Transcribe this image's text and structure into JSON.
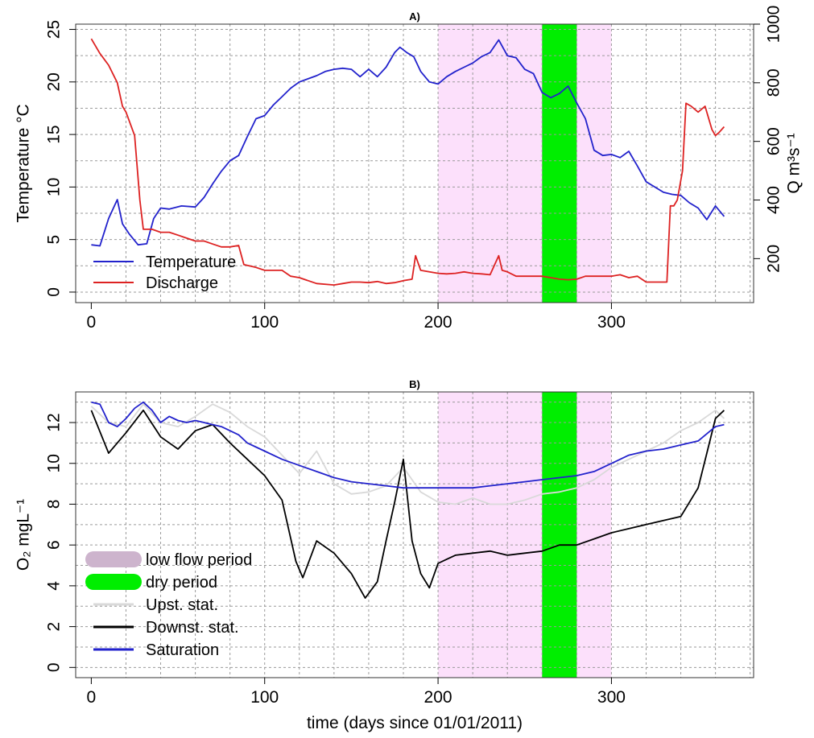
{
  "xlabel": "time (days since 01/01/2011)",
  "chart_data": [
    {
      "type": "line",
      "title": "A)",
      "ylabel": "Temperature °C",
      "ylabel_right": "Q m³s⁻¹",
      "xlim": [
        -9,
        382
      ],
      "ylim": [
        -1,
        25.5
      ],
      "ylim_right": [
        50,
        1000
      ],
      "x_ticks": [
        0,
        100,
        200,
        300
      ],
      "y_ticks": [
        0,
        5,
        10,
        15,
        20,
        25
      ],
      "y_ticks_right": [
        200,
        400,
        600,
        800,
        1000
      ],
      "x_tick_labels": [
        "0",
        "100",
        "200",
        "300"
      ],
      "y_tick_labels": [
        "0",
        "5",
        "10",
        "15",
        "20",
        "25"
      ],
      "y_tick_labels_right": [
        "200",
        "400",
        "600",
        "800",
        "1000"
      ],
      "grid": true,
      "legend": "bottom-left",
      "shaded_periods": [
        {
          "label": "low flow period",
          "start": 200,
          "end": 300,
          "color": "#fce0fb"
        },
        {
          "label": "dry period",
          "start": 260,
          "end": 280,
          "color": "#00ee00"
        }
      ],
      "series": [
        {
          "name": "Temperature",
          "axis": "left",
          "color": "#2222cc",
          "x": [
            0,
            5,
            10,
            15,
            18,
            22,
            27,
            32,
            36,
            40,
            45,
            52,
            60,
            65,
            70,
            75,
            80,
            85,
            90,
            95,
            100,
            105,
            110,
            115,
            120,
            125,
            130,
            135,
            140,
            145,
            150,
            155,
            160,
            165,
            170,
            175,
            178,
            182,
            186,
            190,
            195,
            200,
            205,
            210,
            215,
            220,
            225,
            230,
            235,
            240,
            245,
            250,
            255,
            260,
            265,
            270,
            275,
            280,
            285,
            290,
            295,
            300,
            305,
            310,
            315,
            320,
            325,
            330,
            335,
            340,
            345,
            350,
            355,
            360,
            365
          ],
          "y": [
            4.5,
            4.4,
            7.0,
            8.8,
            6.5,
            5.5,
            4.5,
            4.6,
            7.0,
            8.0,
            7.9,
            8.2,
            8.1,
            9.0,
            10.3,
            11.5,
            12.5,
            13.0,
            14.8,
            16.5,
            16.8,
            17.8,
            18.6,
            19.4,
            20.0,
            20.3,
            20.6,
            21.0,
            21.2,
            21.3,
            21.2,
            20.5,
            21.2,
            20.5,
            21.4,
            22.8,
            23.3,
            22.8,
            22.4,
            21.0,
            20.0,
            19.8,
            20.5,
            21.0,
            21.4,
            21.8,
            22.4,
            22.8,
            24.0,
            22.5,
            22.3,
            21.2,
            20.8,
            19.0,
            18.5,
            18.9,
            19.6,
            18.0,
            16.5,
            13.5,
            13.0,
            13.1,
            12.8,
            13.4,
            12.0,
            10.5,
            10.0,
            9.5,
            9.3,
            9.2,
            8.5,
            8.0,
            6.9,
            8.2,
            7.2
          ]
        },
        {
          "name": "Discharge",
          "axis": "right",
          "color": "#dd2222",
          "x": [
            0,
            5,
            10,
            15,
            18,
            20,
            25,
            28,
            30,
            35,
            40,
            45,
            50,
            55,
            60,
            65,
            70,
            75,
            80,
            85,
            88,
            95,
            100,
            110,
            115,
            120,
            125,
            130,
            140,
            145,
            150,
            155,
            160,
            165,
            170,
            175,
            180,
            185,
            187,
            190,
            195,
            200,
            205,
            210,
            215,
            220,
            225,
            230,
            235,
            237,
            240,
            245,
            250,
            255,
            260,
            265,
            270,
            275,
            280,
            285,
            290,
            295,
            300,
            305,
            310,
            315,
            320,
            325,
            332,
            334,
            336,
            338,
            341,
            343,
            346,
            350,
            354,
            358,
            360,
            362,
            365
          ],
          "y": [
            950,
            900,
            860,
            800,
            720,
            700,
            620,
            400,
            300,
            300,
            290,
            290,
            280,
            270,
            260,
            260,
            250,
            240,
            240,
            245,
            180,
            170,
            160,
            160,
            140,
            135,
            125,
            115,
            110,
            115,
            120,
            120,
            118,
            122,
            115,
            118,
            125,
            130,
            210,
            160,
            155,
            150,
            148,
            150,
            155,
            150,
            148,
            145,
            210,
            160,
            155,
            140,
            140,
            140,
            140,
            135,
            130,
            128,
            130,
            140,
            140,
            140,
            140,
            145,
            135,
            140,
            120,
            120,
            120,
            380,
            380,
            400,
            500,
            730,
            720,
            700,
            720,
            640,
            620,
            630,
            650
          ]
        }
      ]
    },
    {
      "type": "line",
      "title": "B)",
      "ylabel": "O₂ mgL⁻¹",
      "xlim": [
        -9,
        382
      ],
      "ylim": [
        -0.5,
        13.5
      ],
      "x_ticks": [
        0,
        100,
        200,
        300
      ],
      "y_ticks": [
        0,
        2,
        4,
        6,
        8,
        10,
        12
      ],
      "x_tick_labels": [
        "0",
        "100",
        "200",
        "300"
      ],
      "y_tick_labels": [
        "0",
        "2",
        "4",
        "6",
        "8",
        "10",
        "12"
      ],
      "grid": true,
      "legend": "bottom-left",
      "legend_entries": [
        {
          "label": "low flow period",
          "color": "#cdb4cd",
          "style": "thick"
        },
        {
          "label": "dry period",
          "color": "#00ee00",
          "style": "thick"
        },
        {
          "label": "Upst. stat.",
          "color": "#d9d9d9",
          "style": "line"
        },
        {
          "label": "Downst. stat.",
          "color": "#000000",
          "style": "line"
        },
        {
          "label": "Saturation",
          "color": "#2222cc",
          "style": "line"
        }
      ],
      "shaded_periods": [
        {
          "label": "low flow period",
          "start": 200,
          "end": 300,
          "color": "#fce0fb"
        },
        {
          "label": "dry period",
          "start": 260,
          "end": 280,
          "color": "#00ee00"
        }
      ],
      "series": [
        {
          "name": "Upst. stat.",
          "color": "#d9d9d9",
          "x": [
            0,
            10,
            20,
            30,
            40,
            50,
            60,
            70,
            80,
            90,
            100,
            110,
            120,
            130,
            140,
            150,
            160,
            170,
            180,
            190,
            200,
            210,
            220,
            230,
            240,
            250,
            260,
            270,
            280,
            290,
            300,
            310,
            320,
            330,
            340,
            350,
            360,
            365
          ],
          "y": [
            12.8,
            12.0,
            11.8,
            12.9,
            12.0,
            11.8,
            12.3,
            12.9,
            12.5,
            11.8,
            11.3,
            10.4,
            9.5,
            10.6,
            9.0,
            8.5,
            8.6,
            8.9,
            9.8,
            8.6,
            8.1,
            8.0,
            8.3,
            8.0,
            8.0,
            8.2,
            8.5,
            8.6,
            8.8,
            9.2,
            9.8,
            10.2,
            10.6,
            11.0,
            11.6,
            12.0,
            12.6,
            12.2
          ]
        },
        {
          "name": "Downst. stat.",
          "color": "#000000",
          "x": [
            0,
            10,
            20,
            30,
            40,
            50,
            60,
            70,
            80,
            90,
            100,
            110,
            118,
            122,
            130,
            140,
            150,
            158,
            165,
            170,
            175,
            180,
            185,
            190,
            195,
            200,
            205,
            210,
            220,
            230,
            240,
            250,
            260,
            270,
            280,
            290,
            300,
            310,
            320,
            330,
            340,
            350,
            355,
            360,
            365
          ],
          "y": [
            12.6,
            10.5,
            11.5,
            12.6,
            11.3,
            10.7,
            11.6,
            11.9,
            11.0,
            10.2,
            9.4,
            8.2,
            5.2,
            4.4,
            6.2,
            5.6,
            4.6,
            3.4,
            4.2,
            6.2,
            8.1,
            10.2,
            6.2,
            4.6,
            3.9,
            5.1,
            5.3,
            5.5,
            5.6,
            5.7,
            5.5,
            5.6,
            5.7,
            6.0,
            6.0,
            6.3,
            6.6,
            6.8,
            7.0,
            7.2,
            7.4,
            8.8,
            10.5,
            12.2,
            12.6
          ]
        },
        {
          "name": "Saturation",
          "color": "#2222cc",
          "x": [
            0,
            5,
            10,
            15,
            20,
            25,
            30,
            35,
            40,
            45,
            50,
            55,
            60,
            65,
            70,
            75,
            80,
            85,
            90,
            95,
            100,
            110,
            120,
            130,
            140,
            150,
            160,
            170,
            180,
            190,
            200,
            210,
            220,
            230,
            240,
            250,
            260,
            270,
            280,
            290,
            300,
            310,
            320,
            330,
            340,
            350,
            360,
            365
          ],
          "y": [
            13.0,
            12.9,
            12.0,
            11.8,
            12.2,
            12.7,
            13.0,
            12.6,
            12.0,
            12.3,
            12.1,
            12.0,
            12.1,
            12.0,
            11.9,
            11.8,
            11.6,
            11.4,
            11.0,
            10.8,
            10.6,
            10.2,
            9.9,
            9.6,
            9.3,
            9.1,
            9.0,
            8.9,
            8.8,
            8.8,
            8.8,
            8.8,
            8.8,
            8.9,
            9.0,
            9.1,
            9.2,
            9.3,
            9.4,
            9.6,
            10.0,
            10.4,
            10.6,
            10.7,
            10.9,
            11.1,
            11.8,
            11.9
          ]
        }
      ]
    }
  ]
}
